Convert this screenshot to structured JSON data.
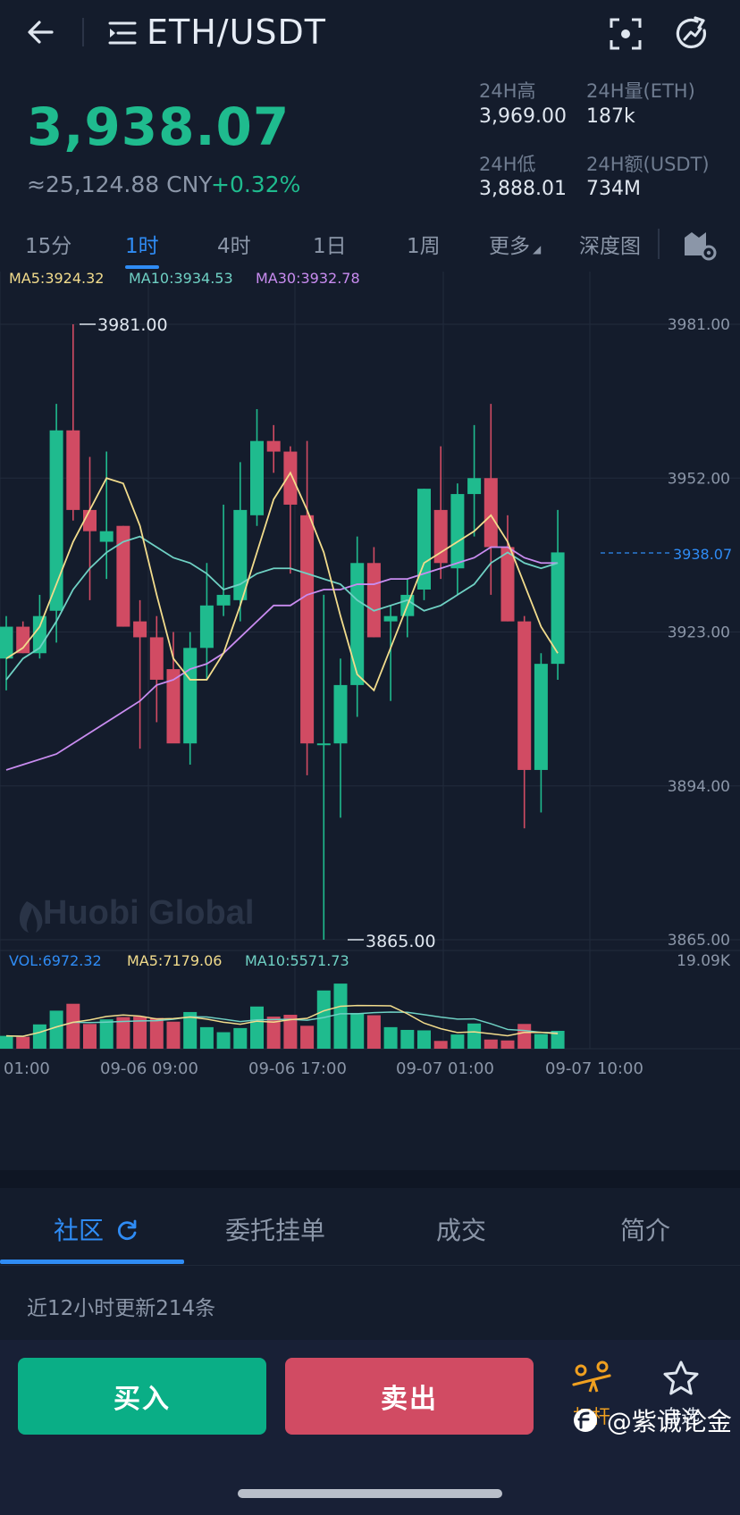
{
  "header": {
    "pair": "ETH/USDT",
    "price": "3,938.07",
    "cny": "≈25,124.88 CNY",
    "change": "+0.32%",
    "stats": {
      "high_label": "24H高",
      "high_value": "3,969.00",
      "vol_label": "24H量(ETH)",
      "vol_value": "187k",
      "low_label": "24H低",
      "low_value": "3,888.01",
      "amt_label": "24H额(USDT)",
      "amt_value": "734M"
    }
  },
  "period_tabs": [
    "15分",
    "1时",
    "4时",
    "1日",
    "1周",
    "更多",
    "深度图"
  ],
  "active_period": "1时",
  "ma_legend": {
    "ma5": "MA5:3924.32",
    "ma10": "MA10:3934.53",
    "ma30": "MA30:3932.78"
  },
  "vol_legend": {
    "vol": "VOL:6972.32",
    "ma5": "MA5:7179.06",
    "ma10": "MA10:5571.73"
  },
  "vol_max_label": "19.09K",
  "max_marker": "3981.00",
  "min_marker": "3865.00",
  "current_price_tag": "3938.07",
  "brand_watermark": "Huobi Global",
  "colors": {
    "up": "#1fbb8e",
    "down": "#d14b63",
    "ma5": "#f2dc8c",
    "ma10": "#6fd1c4",
    "ma30": "#c98cf0",
    "accent": "#2f8cf5"
  },
  "chart_data": {
    "type": "candlestick",
    "y_ticks": [
      "3981.00",
      "3952.00",
      "3923.00",
      "3894.00",
      "3865.00"
    ],
    "ylim": [
      3865,
      3981
    ],
    "x_ticks": [
      "01:00",
      "09-06 09:00",
      "09-06 17:00",
      "09-07 01:00",
      "09-07 10:00"
    ],
    "candles": [
      {
        "o": 3918,
        "h": 3926,
        "l": 3912,
        "c": 3924
      },
      {
        "o": 3924,
        "h": 3925,
        "l": 3919,
        "c": 3919
      },
      {
        "o": 3919,
        "h": 3930,
        "l": 3918,
        "c": 3926
      },
      {
        "o": 3927,
        "h": 3966,
        "l": 3921,
        "c": 3961
      },
      {
        "o": 3961,
        "h": 3981,
        "l": 3944,
        "c": 3946
      },
      {
        "o": 3946,
        "h": 3956,
        "l": 3929,
        "c": 3942
      },
      {
        "o": 3940,
        "h": 3957,
        "l": 3933,
        "c": 3942
      },
      {
        "o": 3943,
        "h": 3943,
        "l": 3924,
        "c": 3924
      },
      {
        "o": 3925,
        "h": 3929,
        "l": 3901,
        "c": 3922
      },
      {
        "o": 3922,
        "h": 3926,
        "l": 3906,
        "c": 3914
      },
      {
        "o": 3916,
        "h": 3923,
        "l": 3903,
        "c": 3902
      },
      {
        "o": 3902,
        "h": 3923,
        "l": 3898,
        "c": 3920
      },
      {
        "o": 3920,
        "h": 3936,
        "l": 3914,
        "c": 3928
      },
      {
        "o": 3928,
        "h": 3947,
        "l": 3926,
        "c": 3930
      },
      {
        "o": 3929,
        "h": 3955,
        "l": 3925,
        "c": 3946
      },
      {
        "o": 3945,
        "h": 3965,
        "l": 3943,
        "c": 3959
      },
      {
        "o": 3959,
        "h": 3962,
        "l": 3953,
        "c": 3957
      },
      {
        "o": 3957,
        "h": 3958,
        "l": 3934,
        "c": 3947
      },
      {
        "o": 3945,
        "h": 3959,
        "l": 3896,
        "c": 3902
      },
      {
        "o": 3902,
        "h": 3930,
        "l": 3865,
        "c": 3902
      },
      {
        "o": 3902,
        "h": 3918,
        "l": 3888,
        "c": 3913
      },
      {
        "o": 3913,
        "h": 3941,
        "l": 3907,
        "c": 3936
      },
      {
        "o": 3936,
        "h": 3939,
        "l": 3922,
        "c": 3922
      },
      {
        "o": 3925,
        "h": 3928,
        "l": 3910,
        "c": 3926
      },
      {
        "o": 3926,
        "h": 3933,
        "l": 3922,
        "c": 3930
      },
      {
        "o": 3931,
        "h": 3950,
        "l": 3929,
        "c": 3950
      },
      {
        "o": 3946,
        "h": 3958,
        "l": 3933,
        "c": 3936
      },
      {
        "o": 3935,
        "h": 3951,
        "l": 3930,
        "c": 3949
      },
      {
        "o": 3949,
        "h": 3962,
        "l": 3941,
        "c": 3952
      },
      {
        "o": 3952,
        "h": 3966,
        "l": 3930,
        "c": 3939
      },
      {
        "o": 3939,
        "h": 3945,
        "l": 3925,
        "c": 3925
      },
      {
        "o": 3925,
        "h": 3926,
        "l": 3886,
        "c": 3897
      },
      {
        "o": 3897,
        "h": 3919,
        "l": 3889,
        "c": 3917
      },
      {
        "o": 3917,
        "h": 3946,
        "l": 3914,
        "c": 3938
      }
    ],
    "ma5": [
      3918,
      3920,
      3924,
      3932,
      3940,
      3946,
      3952,
      3951,
      3943,
      3930,
      3918,
      3914,
      3914,
      3919,
      3928,
      3938,
      3948,
      3953,
      3946,
      3938,
      3926,
      3915,
      3912,
      3920,
      3928,
      3936,
      3938,
      3940,
      3942,
      3945,
      3940,
      3932,
      3924,
      3919
    ],
    "ma10": [
      3914,
      3918,
      3920,
      3925,
      3931,
      3935,
      3938,
      3940,
      3941,
      3939,
      3937,
      3936,
      3934,
      3931,
      3932,
      3934,
      3935,
      3935,
      3934,
      3933,
      3932,
      3929,
      3927,
      3928,
      3929,
      3927,
      3928,
      3930,
      3932,
      3936,
      3938,
      3936,
      3935,
      3936
    ],
    "ma30": [
      3897,
      3898,
      3899,
      3900,
      3902,
      3904,
      3906,
      3908,
      3910,
      3913,
      3914,
      3916,
      3917,
      3919,
      3922,
      3925,
      3928,
      3928,
      3930,
      3931,
      3931,
      3932,
      3932,
      3933,
      3933,
      3934,
      3935,
      3936,
      3937,
      3939,
      3939,
      3937,
      3936,
      3936
    ],
    "volume": {
      "max": 19090,
      "values": [
        2800,
        2600,
        5300,
        8300,
        9800,
        5400,
        6400,
        6900,
        7000,
        6700,
        5900,
        8000,
        4700,
        3600,
        4500,
        9200,
        7000,
        7400,
        5000,
        12700,
        14200,
        7800,
        7300,
        4700,
        4100,
        4000,
        1700,
        3100,
        5500,
        2000,
        1800,
        5400,
        3200,
        3900
      ]
    }
  },
  "bottom_tabs": [
    "社区",
    "委托挂单",
    "成交",
    "简介"
  ],
  "active_bottom_tab": "社区",
  "community_note": "近12小时更新214条",
  "actions": {
    "buy": "买入",
    "sell": "卖出",
    "leverage": "杠杆",
    "watchlist": "自选"
  },
  "source_watermark": "@紫诚论金"
}
